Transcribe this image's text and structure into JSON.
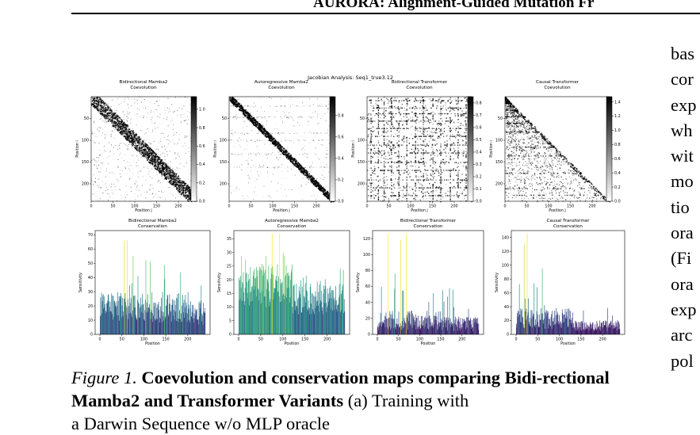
{
  "header": {
    "running_title": "AURORA: Alignment-Guided Mutation Fr"
  },
  "figure": {
    "suptitle": "Jacobian Analysis: Seq1_true3.12",
    "heatmaps": [
      {
        "title_line1": "Bidirectional Mamba2",
        "title_line2": "Coevolution",
        "pattern": "dense-diagonal",
        "cbar_ticks": [
          "1.0",
          "0.8",
          "0.6",
          "0.4",
          "0.2",
          "0.0"
        ]
      },
      {
        "title_line1": "Autoregressive Mamba2",
        "title_line2": "Coevolution",
        "pattern": "sharp-diagonal",
        "cbar_ticks": [
          "0.8",
          "0.6",
          "0.4",
          "0.2",
          "0.0"
        ]
      },
      {
        "title_line1": "Bidirectional Transformer",
        "title_line2": "Coevolution",
        "pattern": "grid-scatter",
        "cbar_ticks": [
          "0.8",
          "0.7",
          "0.6",
          "0.5",
          "0.4",
          "0.3",
          "0.2",
          "0.1",
          "0.0"
        ]
      },
      {
        "title_line1": "Causal Transformer",
        "title_line2": "Coevolution",
        "pattern": "lower-triangle",
        "cbar_ticks": [
          "1.4",
          "1.2",
          "1.0",
          "0.8",
          "0.6",
          "0.4",
          "0.2",
          "0.0"
        ]
      }
    ],
    "heatmap_axes": {
      "xlabel": "Position j",
      "ylabel": "Position i",
      "xticks": [
        "0",
        "50",
        "100",
        "150",
        "200"
      ],
      "yticks": [
        "50",
        "100",
        "150",
        "200"
      ]
    },
    "bars": [
      {
        "title_line1": "Bidirectional Mamba2",
        "title_line2": "Conservation",
        "yticks": [
          "70",
          "60",
          "50",
          "40",
          "30",
          "20",
          "10",
          "0"
        ]
      },
      {
        "title_line1": "Autoregressive Mamba2",
        "title_line2": "Conservation",
        "yticks": [
          "35",
          "30",
          "25",
          "20",
          "15",
          "10",
          "5",
          "0"
        ]
      },
      {
        "title_line1": "Bidirectional Transformer",
        "title_line2": "Conservation",
        "yticks": [
          "120",
          "100",
          "80",
          "60",
          "40",
          "20",
          "0"
        ]
      },
      {
        "title_line1": "Causal Transformer",
        "title_line2": "Conservation",
        "yticks": [
          "140",
          "120",
          "100",
          "80",
          "60",
          "40",
          "20",
          "0"
        ]
      }
    ],
    "bar_axes": {
      "xlabel": "Position",
      "ylabel": "Sensitivity",
      "xticks": [
        "0",
        "50",
        "100",
        "150",
        "200"
      ]
    },
    "colors": {
      "viridis_dark": "#3b528b",
      "viridis_teal": "#21918c",
      "viridis_green": "#5ec962",
      "viridis_yellow": "#fde725"
    }
  },
  "caption": {
    "label": "Figure 1.",
    "bold": "Coevolution and conservation maps comparing Bidi-rectional Mamba2 and Transformer Variants",
    "rest": " (a) Training with",
    "line3": "a Darwin Sequence w/o MLP oracle"
  },
  "right_column": {
    "lines": [
      "bas",
      "cor",
      "exp",
      "wh",
      "wit",
      "mo",
      "tio",
      "ora",
      "(Fi",
      "ora",
      "exp",
      "arc",
      "pol"
    ]
  }
}
